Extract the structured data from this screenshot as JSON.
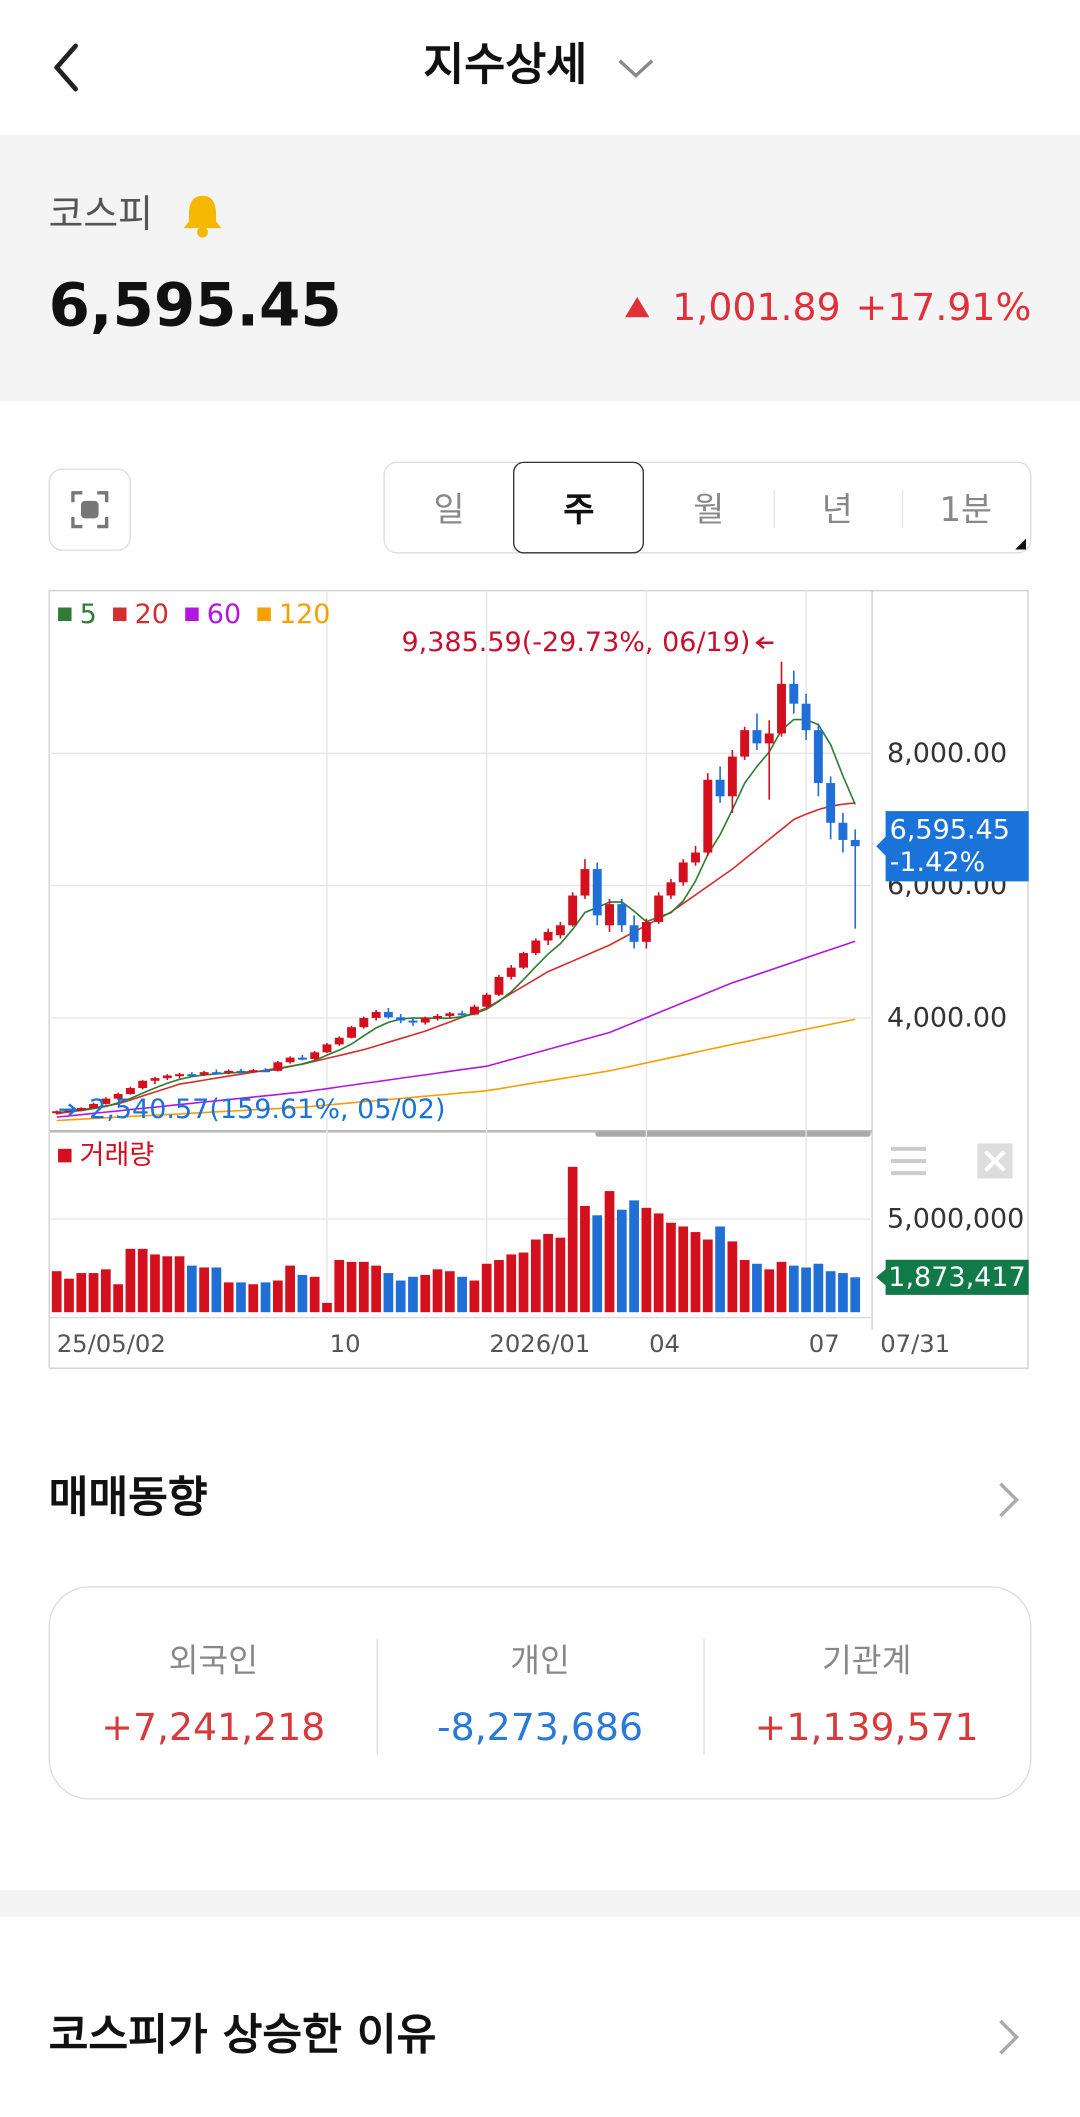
{
  "header": {
    "title": "지수상세"
  },
  "summary": {
    "name": "코스피",
    "price": "6,595.45",
    "change": "1,001.89",
    "change_rate": "+17.91%",
    "color": "#e0303a"
  },
  "period_tabs": [
    "일",
    "주",
    "월",
    "년",
    "1분"
  ],
  "selected_tab": 1,
  "chart_data": {
    "type": "candlestick",
    "categories": [
      "25/05/02",
      null,
      null,
      null,
      null,
      null,
      null,
      null,
      null,
      null,
      null,
      null,
      null,
      null,
      null,
      null,
      null,
      null,
      null,
      null,
      null,
      null,
      "10",
      null,
      null,
      null,
      null,
      null,
      null,
      null,
      null,
      null,
      null,
      null,
      null,
      "2026/01",
      null,
      null,
      null,
      null,
      null,
      null,
      null,
      null,
      null,
      null,
      null,
      null,
      "04",
      null,
      null,
      null,
      null,
      null,
      null,
      null,
      null,
      null,
      null,
      null,
      null,
      "07",
      null,
      null,
      null,
      "07/31"
    ],
    "open": [
      2560,
      2590,
      2600,
      2640,
      2700,
      2780,
      2850,
      2940,
      3050,
      3090,
      3130,
      3150,
      3140,
      3180,
      3170,
      3200,
      3190,
      3210,
      3200,
      3330,
      3400,
      3380,
      3480,
      3600,
      3700,
      3860,
      4000,
      4090,
      4010,
      3960,
      3930,
      4000,
      4030,
      4070,
      4050,
      4170,
      4350,
      4620,
      4760,
      4980,
      5170,
      5250,
      5400,
      5850,
      6250,
      5400,
      5720,
      5400,
      5150,
      5450,
      5850,
      6050,
      6350,
      6500,
      7600,
      7350,
      7950,
      8350,
      8150,
      8300,
      9050,
      8750,
      8350,
      7550,
      6950,
      6690
    ],
    "high": [
      2600,
      2620,
      2650,
      2720,
      2800,
      2870,
      2960,
      3060,
      3110,
      3150,
      3170,
      3180,
      3200,
      3220,
      3220,
      3230,
      3230,
      3240,
      3350,
      3420,
      3440,
      3500,
      3620,
      3720,
      3880,
      4020,
      4120,
      4150,
      4060,
      4010,
      4020,
      4060,
      4090,
      4110,
      4200,
      4380,
      4650,
      4800,
      5000,
      5200,
      5350,
      5450,
      5900,
      6400,
      6350,
      5800,
      5800,
      5550,
      5500,
      5900,
      6100,
      6400,
      6600,
      7700,
      7800,
      8050,
      8400,
      8600,
      8500,
      9385.59,
      9250,
      8900,
      8450,
      7650,
      7100,
      6850
    ],
    "low": [
      2540.57,
      2570,
      2590,
      2630,
      2690,
      2760,
      2840,
      2920,
      3000,
      3060,
      3090,
      3110,
      3120,
      3150,
      3150,
      3170,
      3170,
      3180,
      3190,
      3310,
      3360,
      3370,
      3470,
      3580,
      3690,
      3840,
      3960,
      3990,
      3920,
      3880,
      3900,
      3960,
      4000,
      4030,
      4040,
      4150,
      4330,
      4580,
      4740,
      4950,
      5100,
      5200,
      5380,
      5800,
      5400,
      5300,
      5300,
      5050,
      5050,
      5420,
      5800,
      6000,
      6300,
      6450,
      7250,
      7100,
      7900,
      8050,
      7300,
      8250,
      8600,
      8200,
      7350,
      6700,
      6500,
      5350
    ],
    "close": [
      2590,
      2600,
      2640,
      2700,
      2780,
      2850,
      2940,
      3050,
      3090,
      3130,
      3150,
      3140,
      3180,
      3170,
      3200,
      3190,
      3210,
      3200,
      3330,
      3400,
      3380,
      3480,
      3600,
      3700,
      3860,
      4000,
      4090,
      4010,
      3960,
      3930,
      4000,
      4030,
      4070,
      4050,
      4170,
      4350,
      4620,
      4760,
      4980,
      5170,
      5300,
      5400,
      5850,
      6250,
      5550,
      5720,
      5400,
      5150,
      5450,
      5850,
      6050,
      6350,
      6500,
      7600,
      7350,
      7950,
      8350,
      8150,
      8300,
      9050,
      8750,
      8350,
      7550,
      6950,
      6690,
      6595.45
    ],
    "up_color": "#d4101e",
    "down_color": "#1f6fd6",
    "ylim": [
      2327,
      10408
    ],
    "yticks": [
      {
        "value": 4000,
        "label": "4,000.00"
      },
      {
        "value": 6000,
        "label": "6,000.00"
      },
      {
        "value": 8000,
        "label": "8,000.00"
      }
    ],
    "grid": true,
    "moving_averages": [
      {
        "name": "5",
        "color": "#2e7d32",
        "values": [
          2570,
          2585,
          2600,
          2630,
          2662,
          2714,
          2782,
          2864,
          2942,
          3012,
          3072,
          3112,
          3138,
          3154,
          3168,
          3176,
          3190,
          3194,
          3226,
          3266,
          3304,
          3358,
          3438,
          3512,
          3604,
          3728,
          3850,
          3932,
          3984,
          3998,
          3998,
          3994,
          3998,
          4016,
          4064,
          4134,
          4252,
          4394,
          4580,
          4776,
          4966,
          5122,
          5340,
          5594,
          5670,
          5752,
          5754,
          5614,
          5454,
          5524,
          5590,
          5770,
          6070,
          6470,
          6770,
          7150,
          7550,
          7800,
          8020,
          8350,
          8510,
          8510,
          8430,
          8130,
          7658,
          7227
        ]
      },
      {
        "name": "20",
        "color": "#d32f2f",
        "values": [
          2550,
          2580,
          2610,
          2640,
          2670,
          2700,
          2760,
          2820,
          2880,
          2940,
          3000,
          3030,
          3060,
          3090,
          3120,
          3150,
          3180,
          3210,
          3240,
          3270,
          3300,
          3344,
          3388,
          3432,
          3476,
          3520,
          3576,
          3632,
          3688,
          3744,
          3800,
          3870,
          3940,
          4010,
          4080,
          4150,
          4260,
          4370,
          4480,
          4590,
          4700,
          4780,
          4860,
          4940,
          5020,
          5100,
          5200,
          5300,
          5400,
          5500,
          5600,
          5730,
          5860,
          5990,
          6120,
          6250,
          6400,
          6550,
          6700,
          6850,
          7000,
          7080,
          7150,
          7200,
          7230,
          7250
        ]
      },
      {
        "name": "60",
        "color": "#b316e0",
        "values": [
          2500,
          2519,
          2538,
          2557,
          2576,
          2595,
          2614,
          2633,
          2652,
          2671,
          2690,
          2709,
          2728,
          2747,
          2766,
          2785,
          2804,
          2823,
          2842,
          2861,
          2880,
          2906,
          2932,
          2958,
          2984,
          3010,
          3036,
          3062,
          3088,
          3114,
          3140,
          3166,
          3192,
          3218,
          3244,
          3270,
          3321,
          3372,
          3423,
          3474,
          3525,
          3576,
          3627,
          3678,
          3729,
          3780,
          3855,
          3930,
          4005,
          4080,
          4155,
          4230,
          4305,
          4380,
          4455,
          4530,
          4593,
          4656,
          4719,
          4782,
          4845,
          4908,
          4971,
          5034,
          5097,
          5160
        ]
      },
      {
        "name": "120",
        "color": "#f5a000",
        "values": [
          2450,
          2460,
          2470,
          2480,
          2490,
          2500,
          2510,
          2520,
          2530,
          2540,
          2550,
          2560,
          2570,
          2580,
          2590,
          2600,
          2610,
          2620,
          2630,
          2640,
          2650,
          2667,
          2683,
          2700,
          2717,
          2733,
          2750,
          2767,
          2783,
          2800,
          2817,
          2833,
          2850,
          2867,
          2883,
          2900,
          2930,
          2960,
          2990,
          3020,
          3050,
          3080,
          3110,
          3140,
          3170,
          3200,
          3240,
          3280,
          3320,
          3360,
          3400,
          3440,
          3480,
          3520,
          3560,
          3600,
          3638,
          3676,
          3714,
          3752,
          3790,
          3828,
          3866,
          3904,
          3942,
          3980
        ]
      }
    ],
    "annotations": {
      "high": "9,385.59(-29.73%, 06/19)",
      "high_color": "#c8102e",
      "low": "2,540.57(159.61%, 05/02)",
      "low_color": "#1a73d9"
    },
    "last": {
      "value": 6595.45,
      "label": "6,595.45",
      "change": "-1.42%",
      "color": "#1a73d9"
    },
    "volume": {
      "name": "거래량",
      "color": "#d4101e",
      "values": [
        2200000,
        1800000,
        2100000,
        2100000,
        2300000,
        1500000,
        3400000,
        3400000,
        3100000,
        3000000,
        3000000,
        2500000,
        2400000,
        2400000,
        1600000,
        1600000,
        1500000,
        1600000,
        1700000,
        2500000,
        2000000,
        1900000,
        500000,
        2800000,
        2700000,
        2700000,
        2500000,
        2100000,
        1700000,
        1900000,
        2000000,
        2300000,
        2200000,
        1900000,
        1700000,
        2600000,
        2800000,
        3100000,
        3200000,
        3900000,
        4200000,
        4000000,
        7800000,
        5700000,
        5200000,
        6500000,
        5500000,
        6000000,
        5600000,
        5300000,
        4800000,
        4600000,
        4300000,
        3900000,
        4600000,
        3800000,
        2800000,
        2600000,
        2300000,
        2700000,
        2500000,
        2400000,
        2600000,
        2200000,
        2100000,
        1873417
      ],
      "ylim": [
        0,
        9200000
      ],
      "yticks": [
        {
          "value": 5000000,
          "label": "5,000,000"
        }
      ],
      "last": {
        "value": 1873417,
        "label": "1,873,417",
        "color": "#127a48"
      }
    }
  },
  "trading": {
    "title": "매매동향",
    "items": [
      {
        "label": "외국인",
        "value": "+7,241,218",
        "color": "#d63a3a"
      },
      {
        "label": "개인",
        "value": "-8,273,686",
        "color": "#2a78d8"
      },
      {
        "label": "기관계",
        "value": "+1,139,571",
        "color": "#d63a3a"
      }
    ]
  },
  "reason": {
    "title": "코스피가 상승한 이유"
  }
}
